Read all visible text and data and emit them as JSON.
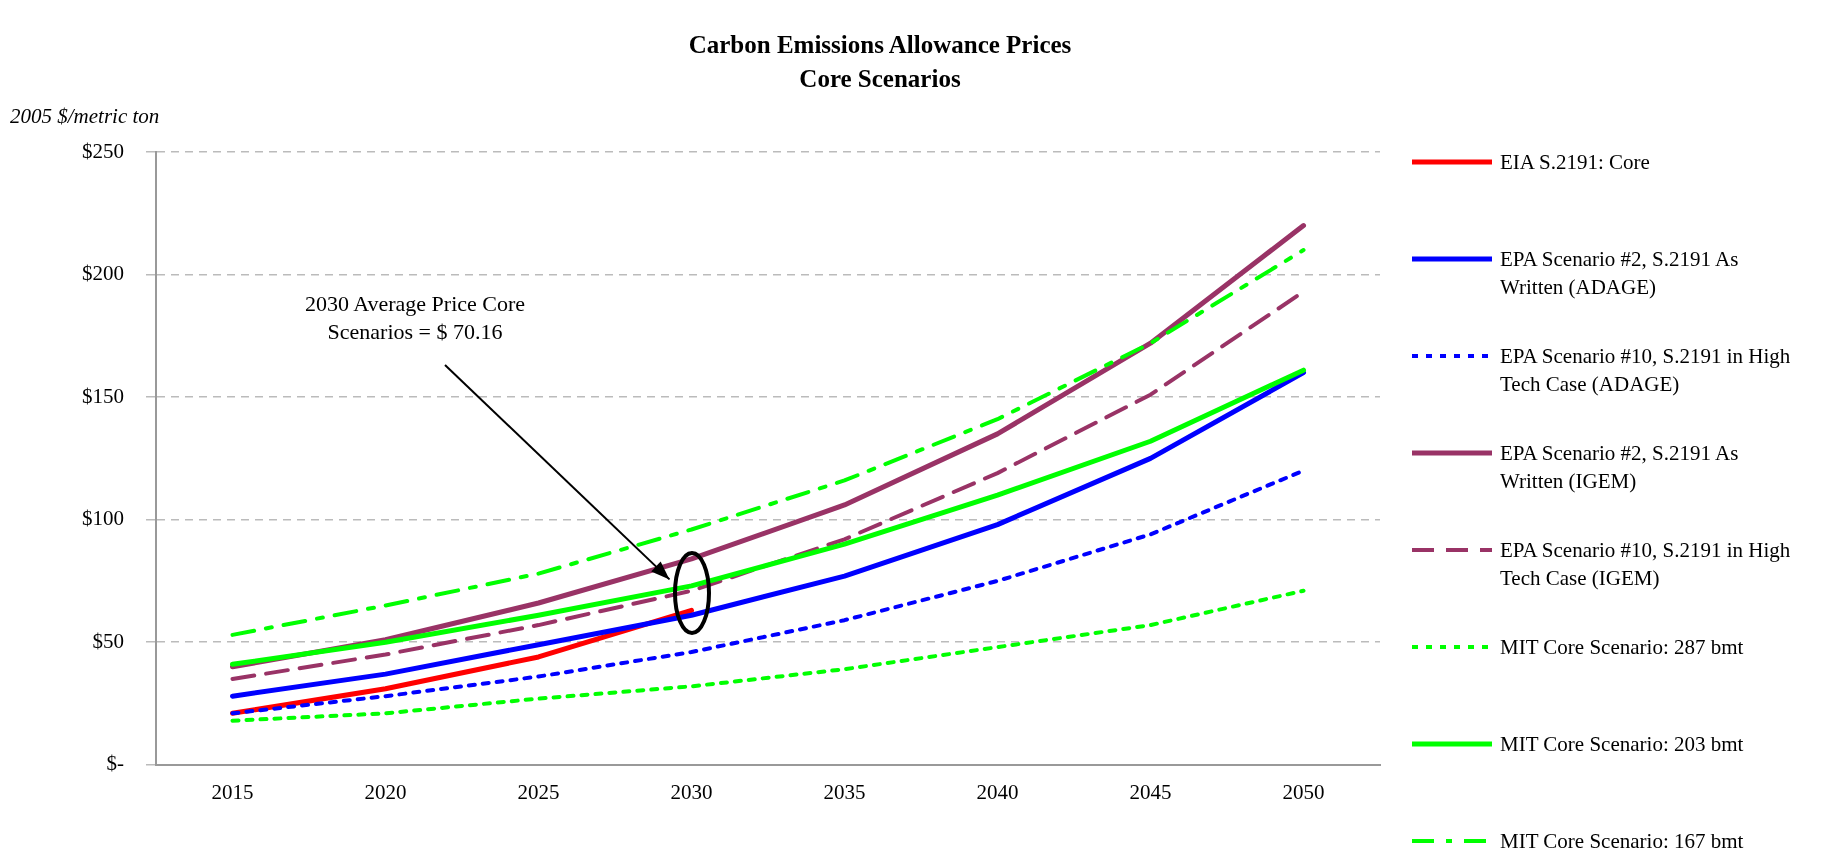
{
  "chart_data": {
    "type": "line",
    "title": "Carbon Emissions Allowance Prices",
    "subtitle": "Core Scenarios",
    "ylabel": "2005 $/metric  ton",
    "categories": [
      "2015",
      "2020",
      "2025",
      "2030",
      "2035",
      "2040",
      "2045",
      "2050"
    ],
    "series": [
      {
        "name": "EIA S.2191: Core",
        "color": "#ff0000",
        "line_style": "solid",
        "values": [
          21,
          31,
          44,
          63,
          null,
          null,
          null,
          null
        ]
      },
      {
        "name": "EPA Scenario #2, S.2191 As Written (ADAGE)",
        "color": "#0000ff",
        "line_style": "solid",
        "values": [
          28,
          37,
          49,
          61,
          77,
          98,
          125,
          160
        ]
      },
      {
        "name": "EPA Scenario #10, S.2191 in High Tech Case (ADAGE)",
        "color": "#0000ff",
        "line_style": "dotted",
        "values": [
          21,
          28,
          36,
          46,
          59,
          75,
          94,
          120
        ]
      },
      {
        "name": "EPA Scenario #2, S.2191 As Written (IGEM)",
        "color": "#993366",
        "line_style": "solid",
        "values": [
          40,
          51,
          66,
          84,
          106,
          135,
          172,
          220
        ]
      },
      {
        "name": "EPA Scenario #10, S.2191 in High Tech Case (IGEM)",
        "color": "#993366",
        "line_style": "dashed",
        "values": [
          35,
          45,
          57,
          71,
          92,
          119,
          151,
          193
        ]
      },
      {
        "name": "MIT Core Scenario: 287 bmt",
        "color": "#00ff00",
        "line_style": "dotted",
        "values": [
          18,
          21,
          27,
          32,
          39,
          48,
          57,
          71
        ]
      },
      {
        "name": "MIT Core Scenario: 203 bmt",
        "color": "#00ff00",
        "line_style": "solid",
        "values": [
          41,
          50,
          61,
          73,
          90,
          110,
          132,
          161
        ]
      },
      {
        "name": "MIT Core Scenario: 167 bmt",
        "color": "#00ff00",
        "line_style": "dashdot",
        "values": [
          53,
          65,
          78,
          96,
          116,
          141,
          172,
          210
        ]
      }
    ],
    "ylim": [
      0,
      250
    ],
    "yticks": [
      {
        "value": 0,
        "label": "$-"
      },
      {
        "value": 50,
        "label": "$50"
      },
      {
        "value": 100,
        "label": "$100"
      },
      {
        "value": 150,
        "label": "$150"
      },
      {
        "value": 200,
        "label": "$200"
      },
      {
        "value": 250,
        "label": "$250"
      }
    ],
    "grid": "y",
    "legend": "right",
    "marker": "none",
    "annotations": [
      "2030 Average Price Core Scenarios = $ 70.16"
    ]
  }
}
